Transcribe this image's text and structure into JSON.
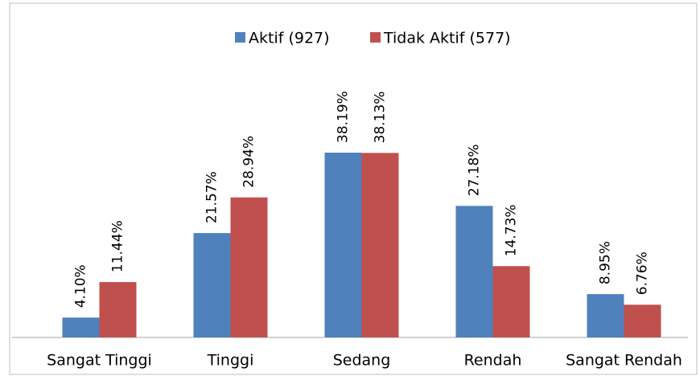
{
  "chart_data": {
    "type": "bar",
    "categories": [
      "Sangat Tinggi",
      "Tinggi",
      "Sedang",
      "Rendah",
      "Sangat Rendah"
    ],
    "series": [
      {
        "name": "Aktif (927)",
        "color": "#4f81bd",
        "values": [
          4.1,
          21.57,
          38.19,
          27.18,
          8.95
        ],
        "value_labels": [
          "4.10%",
          "21.57%",
          "38.19%",
          "27.18%",
          "8.95%"
        ]
      },
      {
        "name": "Tidak Aktif (577)",
        "color": "#c0504d",
        "values": [
          11.44,
          28.94,
          38.13,
          14.73,
          6.76
        ],
        "value_labels": [
          "11.44%",
          "28.94%",
          "38.13%",
          "14.73%",
          "6.76%"
        ]
      }
    ],
    "legend": "top"
  }
}
